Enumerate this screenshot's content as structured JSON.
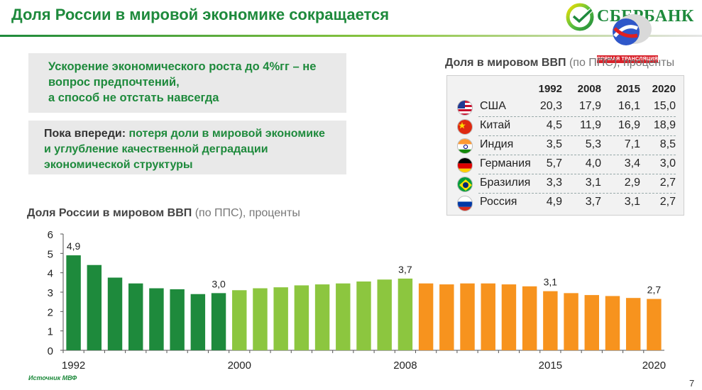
{
  "header": {
    "title": "Доля России в мировой экономике сокращается",
    "logo_text": "СБЕРБАНК",
    "live_badge": "ПРЯМАЯ ТРАНСЛЯЦИЯ"
  },
  "box1": {
    "line1": "Ускорение экономического роста до 4%гг – не",
    "line2": "вопрос предпочтений,",
    "line3": "а способ не отстать навсегда"
  },
  "box2": {
    "lead": "Пока впереди:",
    "rest1": " потеря доли в мировой экономике",
    "line2": "и  углубление качественной деградации",
    "line3": "экономической структуры"
  },
  "table": {
    "title_bold": "Доля в мировом ВВП",
    "title_rest": " (по ППС), проценты",
    "years": [
      "1992",
      "2008",
      "2015",
      "2020"
    ],
    "rows": [
      {
        "country": "США",
        "flag": "us-flag-icon",
        "values": [
          "20,3",
          "17,9",
          "16,1",
          "15,0"
        ]
      },
      {
        "country": "Китай",
        "flag": "china-flag-icon",
        "values": [
          "4,5",
          "11,9",
          "16,9",
          "18,9"
        ]
      },
      {
        "country": "Индия",
        "flag": "india-flag-icon",
        "values": [
          "3,5",
          "5,3",
          "7,1",
          "8,5"
        ]
      },
      {
        "country": "Германия",
        "flag": "germany-flag-icon",
        "values": [
          "5,7",
          "4,0",
          "3,4",
          "3,0"
        ]
      },
      {
        "country": "Бразилия",
        "flag": "brazil-flag-icon",
        "values": [
          "3,3",
          "3,1",
          "2,9",
          "2,7"
        ]
      },
      {
        "country": "Россия",
        "flag": "russia-flag-icon",
        "values": [
          "4,9",
          "3,7",
          "3,1",
          "2,7"
        ]
      }
    ]
  },
  "chart_title_bold": "Доля России в мировом ВВП",
  "chart_title_rest": " (по ППС), проценты",
  "chart_data": {
    "type": "bar",
    "x": [
      1992,
      1993,
      1994,
      1995,
      1996,
      1997,
      1998,
      1999,
      2000,
      2001,
      2002,
      2003,
      2004,
      2005,
      2006,
      2007,
      2008,
      2009,
      2010,
      2011,
      2012,
      2013,
      2014,
      2015,
      2016,
      2017,
      2018,
      2019,
      2020
    ],
    "values": [
      4.9,
      4.4,
      3.75,
      3.45,
      3.2,
      3.15,
      2.9,
      2.95,
      3.1,
      3.2,
      3.25,
      3.35,
      3.4,
      3.45,
      3.55,
      3.65,
      3.7,
      3.45,
      3.4,
      3.45,
      3.45,
      3.4,
      3.3,
      3.05,
      2.95,
      2.85,
      2.8,
      2.7,
      2.65
    ],
    "x_tick_labels": [
      "1992",
      "2000",
      "2008",
      "2015",
      "2020"
    ],
    "y_ticks": [
      "0",
      "1",
      "2",
      "3",
      "4",
      "5",
      "6"
    ],
    "ylim": [
      0,
      6
    ],
    "annotations": [
      {
        "x": 1992,
        "label": "4,9"
      },
      {
        "x": 1999,
        "label": "3,0"
      },
      {
        "x": 2008,
        "label": "3,7"
      },
      {
        "x": 2015,
        "label": "3,1"
      },
      {
        "x": 2020,
        "label": "2,7"
      }
    ],
    "bar_colors": {
      "1992-1999": "#1e8a3c",
      "2000-2008": "#8cc63f",
      "2009-2020": "#f7931e"
    },
    "grid": false,
    "xlabel": "",
    "ylabel": ""
  },
  "footer": {
    "source": "Источник МВФ",
    "page_number": "7"
  }
}
